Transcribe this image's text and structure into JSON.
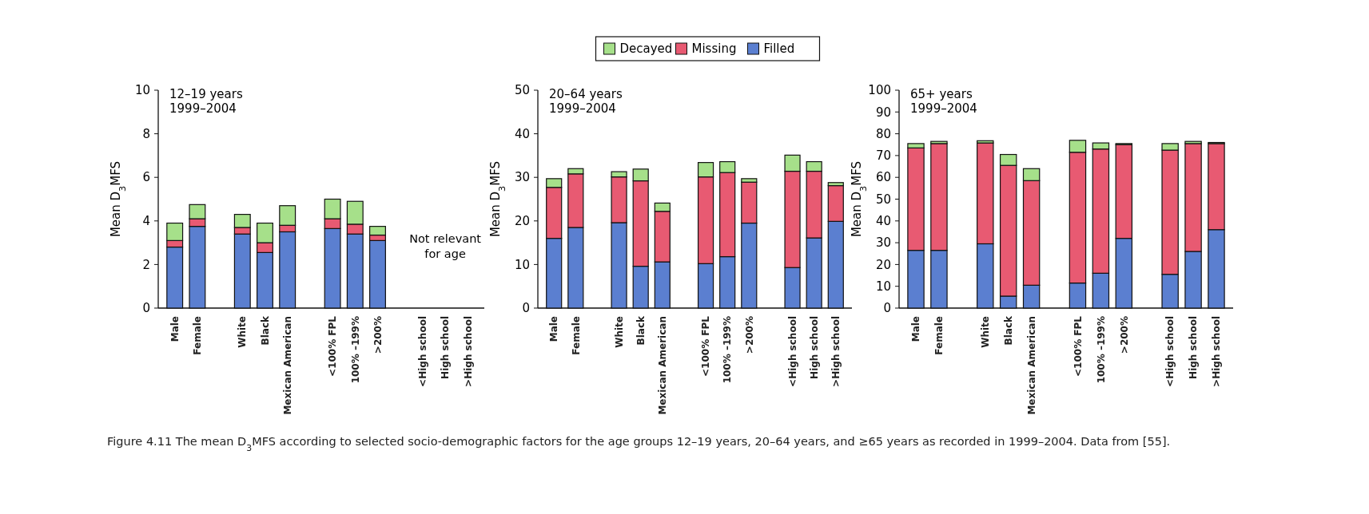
{
  "chart_data": [
    {
      "type": "bar",
      "stacked": true,
      "title": "12–19 years",
      "subtitle": "1999–2004",
      "ylabel": "Mean D$_{3}$MFS",
      "categories": [
        "Male",
        "Female",
        null,
        "White",
        "Black",
        "Mexican American",
        null,
        "<100% FPL",
        "100% –199%",
        ">200%",
        null,
        "<High school",
        "High school",
        ">High school"
      ],
      "series": [
        {
          "color": "#5b7fd0",
          "values": [
            2.8,
            3.75,
            null,
            3.4,
            2.55,
            3.5,
            null,
            3.65,
            3.4,
            3.1,
            null,
            null,
            null,
            null
          ]
        },
        {
          "color": "#e85a72",
          "values": [
            0.3,
            0.35,
            null,
            0.3,
            0.45,
            0.3,
            null,
            0.45,
            0.45,
            0.25,
            null,
            null,
            null,
            null
          ]
        },
        {
          "color": "#a6e08a",
          "values": [
            0.8,
            0.65,
            null,
            0.6,
            0.9,
            0.9,
            null,
            0.9,
            1.05,
            0.4,
            null,
            null,
            null,
            null
          ]
        }
      ],
      "ylim": [
        0,
        10
      ],
      "yticks": [
        0,
        2,
        4,
        6,
        8,
        10
      ],
      "annotations": [
        "Not relevant for age",
        "Figure 4.11 The mean D$_{3}$MFS according to selected socio-demographic factors for the age groups 12–19 years, 20–64 years, and ≥65 years as recorded in 1999–2004. Data from [55]."
      ]
    },
    {
      "type": "bar",
      "stacked": true,
      "title": "20–64 years",
      "subtitle": "1999–2004",
      "ylabel": "Mean D$_{3}$MFS",
      "legend": "top",
      "categories": [
        "Male",
        "Female",
        null,
        "White",
        "Black",
        "Mexican American",
        null,
        "<100% FPL",
        "100% –199%",
        ">200%",
        null,
        "<High school",
        "High school",
        ">High school"
      ],
      "series": [
        {
          "name": "Filled",
          "color": "#5b7fd0",
          "values": [
            16,
            18.5,
            null,
            19.6,
            9.6,
            10.6,
            null,
            10.2,
            11.8,
            19.5,
            null,
            9.3,
            16.1,
            19.9
          ]
        },
        {
          "name": "Missing",
          "color": "#e85a72",
          "values": [
            11.7,
            12.3,
            null,
            10.5,
            19.6,
            11.6,
            null,
            19.9,
            19.3,
            9.4,
            null,
            22.1,
            15.3,
            8.2
          ]
        },
        {
          "name": "Decayed",
          "color": "#a6e08a",
          "values": [
            2,
            1.2,
            null,
            1.2,
            2.7,
            1.9,
            null,
            3.3,
            2.5,
            0.8,
            null,
            3.7,
            2.2,
            0.7
          ]
        }
      ],
      "ylim": [
        0,
        50
      ],
      "yticks": [
        0,
        10,
        20,
        30,
        40,
        50
      ]
    },
    {
      "type": "bar",
      "stacked": true,
      "title": "65+ years",
      "subtitle": "1999–2004",
      "ylabel": "Mean D$_{3}$MFS",
      "categories": [
        "Male",
        "Female",
        null,
        "White",
        "Black",
        "Mexican American",
        null,
        "<100% FPL",
        "100% –199%",
        ">200%",
        null,
        "<High school",
        "High school",
        ">High school"
      ],
      "series": [
        {
          "color": "#5b7fd0",
          "values": [
            26.5,
            26.5,
            null,
            29.5,
            5.5,
            10.5,
            null,
            11.5,
            16,
            32,
            null,
            15.5,
            26,
            36
          ]
        },
        {
          "color": "#e85a72",
          "values": [
            47,
            49,
            null,
            46.3,
            60,
            48,
            null,
            60,
            57,
            43,
            null,
            57,
            49.5,
            39.5
          ]
        },
        {
          "color": "#a6e08a",
          "values": [
            2,
            1,
            null,
            1,
            5,
            5.5,
            null,
            5.5,
            2.8,
            0.5,
            null,
            3,
            1,
            0.5
          ]
        }
      ],
      "ylim": [
        0,
        100
      ],
      "yticks": [
        0,
        10,
        20,
        30,
        40,
        50,
        60,
        70,
        80,
        90,
        100
      ]
    }
  ]
}
